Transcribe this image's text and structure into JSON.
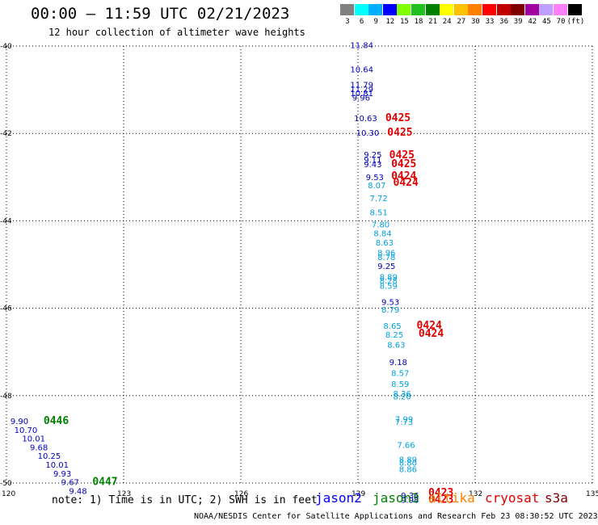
{
  "header": {
    "title": "00:00 – 11:59 UTC 02/21/2023",
    "subtitle": "12 hour collection of altimeter wave heights"
  },
  "colorbar": {
    "swatches": [
      {
        "color": "#808080",
        "label": "3"
      },
      {
        "color": "#00ffff",
        "label": "6"
      },
      {
        "color": "#00b0ff",
        "label": "9"
      },
      {
        "color": "#0000ff",
        "label": "12"
      },
      {
        "color": "#80ff00",
        "label": "15"
      },
      {
        "color": "#20c020",
        "label": "18"
      },
      {
        "color": "#008000",
        "label": "21"
      },
      {
        "color": "#ffff00",
        "label": "24"
      },
      {
        "color": "#ffc000",
        "label": "27"
      },
      {
        "color": "#ff8000",
        "label": "30"
      },
      {
        "color": "#ff0000",
        "label": "33"
      },
      {
        "color": "#c00000",
        "label": "36"
      },
      {
        "color": "#800000",
        "label": "39"
      },
      {
        "color": "#a000a0",
        "label": "42"
      },
      {
        "color": "#c0a0ff",
        "label": "45"
      },
      {
        "color": "#ff80ff",
        "label": "70"
      },
      {
        "color": "#000000",
        "label": "(ft)"
      }
    ]
  },
  "chart_data": {
    "type": "scatter",
    "title": "00:00 – 11:59 UTC 02/21/2023",
    "subtitle": "12 hour collection of altimeter wave heights",
    "xlim": [
      120,
      135
    ],
    "ylim": [
      -50,
      -40
    ],
    "x_ticks": [
      "120",
      "123",
      "126",
      "129",
      "132",
      "135"
    ],
    "y_ticks": [
      "-40",
      "-42",
      "-44",
      "-46",
      "-48",
      "-50"
    ],
    "grid": true,
    "colors": {
      "dark": "#0000c0",
      "light": "#00a0e0",
      "jason3": "#008000",
      "cryosat": "#e00000"
    },
    "points": [
      {
        "lon": 128.8,
        "lat": -40.05,
        "value": "11.84",
        "color": "dark"
      },
      {
        "lon": 128.8,
        "lat": -40.6,
        "value": "10.64",
        "color": "dark"
      },
      {
        "lon": 128.8,
        "lat": -40.95,
        "value": "11.79",
        "color": "dark"
      },
      {
        "lon": 128.8,
        "lat": -41.05,
        "value": "11.29",
        "color": "dark"
      },
      {
        "lon": 128.8,
        "lat": -41.15,
        "value": "10.81",
        "color": "dark"
      },
      {
        "lon": 128.85,
        "lat": -41.25,
        "value": "9.96",
        "color": "dark"
      },
      {
        "lon": 128.9,
        "lat": -41.72,
        "value": "10.63",
        "color": "dark"
      },
      {
        "lon": 128.95,
        "lat": -42.05,
        "value": "10.30",
        "color": "dark"
      },
      {
        "lon": 129.15,
        "lat": -42.55,
        "value": "9.25",
        "color": "dark"
      },
      {
        "lon": 129.15,
        "lat": -42.67,
        "value": "9.11",
        "color": "dark"
      },
      {
        "lon": 129.15,
        "lat": -42.77,
        "value": "9.43",
        "color": "dark"
      },
      {
        "lon": 129.2,
        "lat": -43.07,
        "value": "9.53",
        "color": "dark"
      },
      {
        "lon": 129.25,
        "lat": -43.25,
        "value": "8.07",
        "color": "light"
      },
      {
        "lon": 129.3,
        "lat": -43.55,
        "value": "7.72",
        "color": "light"
      },
      {
        "lon": 129.3,
        "lat": -43.87,
        "value": "8.51",
        "color": "light"
      },
      {
        "lon": 129.35,
        "lat": -44.15,
        "value": "7.80",
        "color": "light"
      },
      {
        "lon": 129.4,
        "lat": -44.35,
        "value": "8.84",
        "color": "light"
      },
      {
        "lon": 129.45,
        "lat": -44.57,
        "value": "8.63",
        "color": "light"
      },
      {
        "lon": 129.5,
        "lat": -44.8,
        "value": "8.96",
        "color": "light"
      },
      {
        "lon": 129.5,
        "lat": -44.9,
        "value": "8.78",
        "color": "light"
      },
      {
        "lon": 129.5,
        "lat": -45.1,
        "value": "9.25",
        "color": "dark"
      },
      {
        "lon": 129.55,
        "lat": -45.35,
        "value": "8.89",
        "color": "light"
      },
      {
        "lon": 129.55,
        "lat": -45.43,
        "value": "8.28",
        "color": "light"
      },
      {
        "lon": 129.55,
        "lat": -45.55,
        "value": "8.59",
        "color": "light"
      },
      {
        "lon": 129.6,
        "lat": -45.92,
        "value": "9.53",
        "color": "dark"
      },
      {
        "lon": 129.6,
        "lat": -46.1,
        "value": "8.79",
        "color": "light"
      },
      {
        "lon": 129.65,
        "lat": -46.47,
        "value": "8.65",
        "color": "light"
      },
      {
        "lon": 129.7,
        "lat": -46.67,
        "value": "8.25",
        "color": "light"
      },
      {
        "lon": 129.75,
        "lat": -46.9,
        "value": "8.63",
        "color": "light"
      },
      {
        "lon": 129.8,
        "lat": -47.3,
        "value": "9.18",
        "color": "dark"
      },
      {
        "lon": 129.85,
        "lat": -47.55,
        "value": "8.57",
        "color": "light"
      },
      {
        "lon": 129.85,
        "lat": -47.8,
        "value": "8.59",
        "color": "light"
      },
      {
        "lon": 129.9,
        "lat": -48.02,
        "value": "8.36",
        "color": "light"
      },
      {
        "lon": 129.9,
        "lat": -48.09,
        "value": "8.20",
        "color": "light"
      },
      {
        "lon": 129.95,
        "lat": -48.6,
        "value": "7.99",
        "color": "light"
      },
      {
        "lon": 129.95,
        "lat": -48.67,
        "value": "7.73",
        "color": "light"
      },
      {
        "lon": 130.0,
        "lat": -49.2,
        "value": "7.66",
        "color": "light"
      },
      {
        "lon": 130.05,
        "lat": -49.53,
        "value": "8.89",
        "color": "light"
      },
      {
        "lon": 130.05,
        "lat": -49.6,
        "value": "8.80",
        "color": "light"
      },
      {
        "lon": 130.05,
        "lat": -49.75,
        "value": "8.86",
        "color": "light"
      },
      {
        "lon": 130.1,
        "lat": -50.35,
        "value": "9.36",
        "color": "dark"
      },
      {
        "lon": 130.1,
        "lat": -50.45,
        "value": "9.98",
        "color": "dark"
      },
      {
        "lon": 120.1,
        "lat": -48.65,
        "value": "9.90",
        "color": "dark"
      },
      {
        "lon": 120.2,
        "lat": -48.85,
        "value": "10.70",
        "color": "dark"
      },
      {
        "lon": 120.4,
        "lat": -49.05,
        "value": "10.01",
        "color": "dark"
      },
      {
        "lon": 120.6,
        "lat": -49.25,
        "value": "9.68",
        "color": "dark"
      },
      {
        "lon": 120.8,
        "lat": -49.45,
        "value": "10.25",
        "color": "dark"
      },
      {
        "lon": 121.0,
        "lat": -49.65,
        "value": "10.01",
        "color": "dark"
      },
      {
        "lon": 121.2,
        "lat": -49.85,
        "value": "9.93",
        "color": "dark"
      },
      {
        "lon": 121.4,
        "lat": -50.05,
        "value": "9.67",
        "color": "dark"
      },
      {
        "lon": 121.6,
        "lat": -50.25,
        "value": "9.48",
        "color": "dark"
      }
    ],
    "passes": [
      {
        "lon": 129.7,
        "lat": -41.72,
        "label": "0425",
        "color": "cryosat"
      },
      {
        "lon": 129.75,
        "lat": -42.05,
        "label": "0425",
        "color": "cryosat"
      },
      {
        "lon": 129.8,
        "lat": -42.57,
        "label": "0425",
        "color": "cryosat"
      },
      {
        "lon": 129.85,
        "lat": -42.77,
        "label": "0425",
        "color": "cryosat"
      },
      {
        "lon": 129.85,
        "lat": -43.05,
        "label": "0424",
        "color": "cryosat"
      },
      {
        "lon": 129.9,
        "lat": -43.2,
        "label": "0424",
        "color": "cryosat"
      },
      {
        "lon": 130.5,
        "lat": -46.47,
        "label": "0424",
        "color": "cryosat"
      },
      {
        "lon": 130.55,
        "lat": -46.65,
        "label": "0424",
        "color": "cryosat"
      },
      {
        "lon": 130.8,
        "lat": -50.3,
        "label": "0423",
        "color": "cryosat"
      },
      {
        "lon": 130.8,
        "lat": -50.45,
        "label": "0423",
        "color": "cryosat"
      },
      {
        "lon": 120.95,
        "lat": -48.65,
        "label": "0446",
        "color": "jason3"
      },
      {
        "lon": 122.2,
        "lat": -50.05,
        "label": "0447",
        "color": "jason3"
      }
    ]
  },
  "note": "note: 1) Time is in UTC; 2) SWH is in feet",
  "satellites": [
    {
      "name": "jason2",
      "color": "#0000ff"
    },
    {
      "name": "jason3",
      "color": "#008000"
    },
    {
      "name": "altika",
      "color": "#ff8000"
    },
    {
      "name": "cryosat",
      "color": "#e00000"
    },
    {
      "name": "s3a",
      "color": "#800000"
    }
  ],
  "footer": "NOAA/NESDIS Center for Satellite Applications and Research    Feb 23 08:30:52 UTC 2023"
}
